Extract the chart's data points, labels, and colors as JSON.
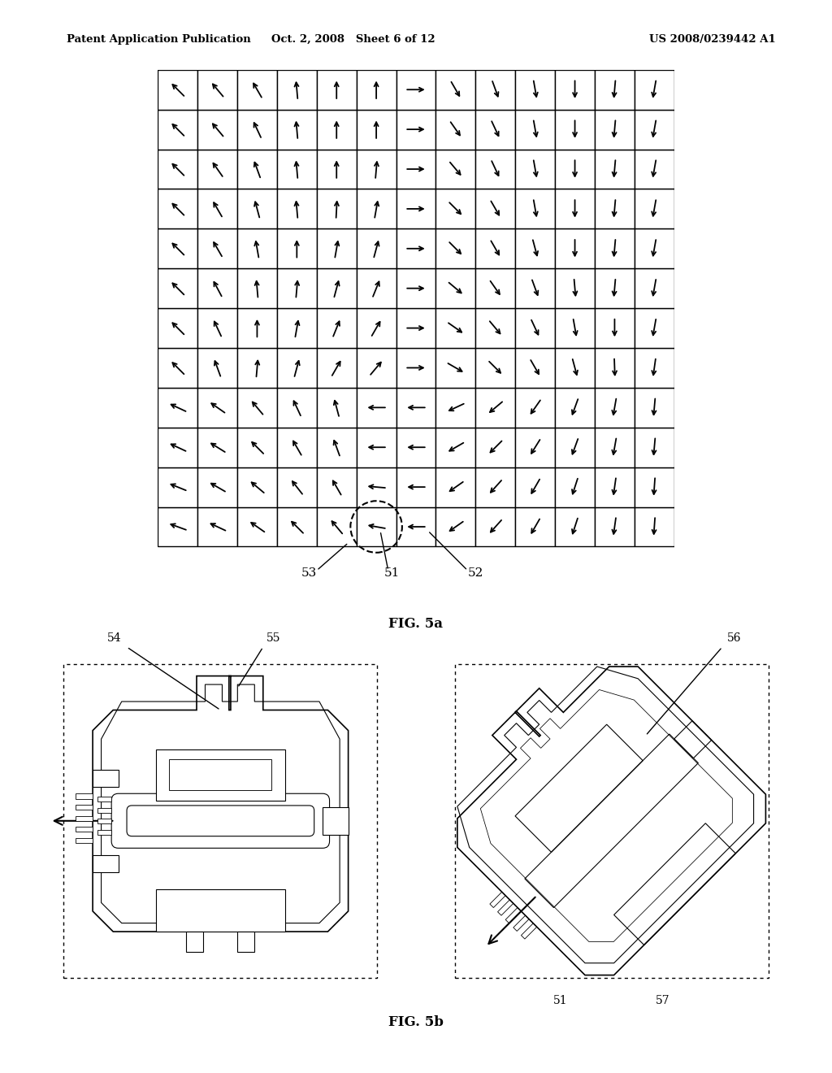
{
  "bg_color": "#ffffff",
  "title_left": "Patent Application Publication",
  "title_center": "Oct. 2, 2008   Sheet 6 of 12",
  "title_right": "US 2008/0239442 A1",
  "fig5a_label": "FIG. 5a",
  "fig5b_label": "FIG. 5b",
  "label_53": "53",
  "label_51_top": "51",
  "label_52": "52",
  "label_54": "54",
  "label_55": "55",
  "label_56": "56",
  "label_51_bot": "51",
  "label_57": "57",
  "grid_rows": 12,
  "grid_cols": 13,
  "grid_color": "#000000",
  "arrow_color": "#000000",
  "arrow_angles": [
    [
      135,
      130,
      120,
      95,
      90,
      90,
      0,
      300,
      290,
      280,
      270,
      265,
      260
    ],
    [
      135,
      130,
      115,
      95,
      90,
      90,
      0,
      305,
      295,
      280,
      270,
      265,
      260
    ],
    [
      135,
      125,
      110,
      95,
      90,
      85,
      0,
      310,
      295,
      280,
      270,
      265,
      260
    ],
    [
      135,
      120,
      105,
      95,
      87,
      80,
      0,
      315,
      300,
      280,
      270,
      265,
      260
    ],
    [
      135,
      120,
      100,
      90,
      80,
      75,
      0,
      315,
      300,
      285,
      270,
      265,
      260
    ],
    [
      135,
      118,
      95,
      85,
      75,
      68,
      0,
      320,
      305,
      290,
      275,
      265,
      260
    ],
    [
      135,
      115,
      90,
      80,
      68,
      60,
      0,
      325,
      310,
      295,
      280,
      270,
      260
    ],
    [
      135,
      110,
      85,
      75,
      60,
      50,
      0,
      330,
      315,
      300,
      285,
      272,
      262
    ],
    [
      155,
      145,
      130,
      115,
      105,
      180,
      180,
      205,
      220,
      235,
      250,
      260,
      265
    ],
    [
      155,
      148,
      135,
      120,
      110,
      180,
      180,
      210,
      225,
      238,
      250,
      260,
      265
    ],
    [
      158,
      150,
      140,
      128,
      120,
      175,
      180,
      215,
      228,
      240,
      252,
      262,
      266
    ],
    [
      160,
      155,
      145,
      135,
      130,
      170,
      180,
      215,
      228,
      240,
      252,
      262,
      266
    ]
  ]
}
